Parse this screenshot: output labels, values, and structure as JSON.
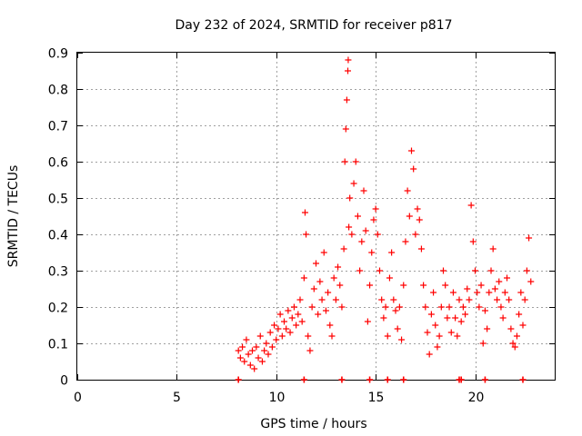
{
  "chart_data": {
    "type": "scatter",
    "title": "Day 232 of 2024, SRMTID for receiver p817",
    "xlabel": "GPS time / hours",
    "ylabel": "SRMTID / TECUs",
    "xlim": [
      0,
      24
    ],
    "ylim": [
      0,
      0.9
    ],
    "xticks": [
      0,
      5,
      10,
      15,
      20
    ],
    "xtick_labels": [
      "0",
      "5",
      "10",
      "15",
      "20"
    ],
    "yticks": [
      0,
      0.1,
      0.2,
      0.3,
      0.4,
      0.5,
      0.6,
      0.7,
      0.8,
      0.9
    ],
    "ytick_labels": [
      "0",
      "0.1",
      "0.2",
      "0.3",
      "0.4",
      "0.5",
      "0.6",
      "0.7",
      "0.8",
      "0.9"
    ],
    "grid": true,
    "marker": "+",
    "series": [
      {
        "name": "SRMTID",
        "color": "#ff0000",
        "points": [
          [
            8.1,
            0.08
          ],
          [
            8.2,
            0.06
          ],
          [
            8.3,
            0.09
          ],
          [
            8.4,
            0.05
          ],
          [
            8.5,
            0.11
          ],
          [
            8.6,
            0.07
          ],
          [
            8.7,
            0.04
          ],
          [
            8.8,
            0.08
          ],
          [
            8.9,
            0.03
          ],
          [
            9.0,
            0.09
          ],
          [
            9.1,
            0.06
          ],
          [
            9.2,
            0.12
          ],
          [
            9.3,
            0.05
          ],
          [
            9.4,
            0.08
          ],
          [
            9.5,
            0.1
          ],
          [
            9.6,
            0.07
          ],
          [
            9.7,
            0.13
          ],
          [
            9.8,
            0.09
          ],
          [
            9.9,
            0.15
          ],
          [
            10.0,
            0.11
          ],
          [
            10.1,
            0.14
          ],
          [
            10.2,
            0.18
          ],
          [
            10.3,
            0.12
          ],
          [
            10.4,
            0.16
          ],
          [
            10.5,
            0.14
          ],
          [
            10.6,
            0.19
          ],
          [
            10.7,
            0.13
          ],
          [
            10.8,
            0.17
          ],
          [
            10.9,
            0.2
          ],
          [
            11.0,
            0.15
          ],
          [
            11.1,
            0.18
          ],
          [
            11.2,
            0.22
          ],
          [
            11.3,
            0.16
          ],
          [
            11.4,
            0.28
          ],
          [
            11.45,
            0.46
          ],
          [
            11.5,
            0.4
          ],
          [
            11.6,
            0.12
          ],
          [
            11.7,
            0.08
          ],
          [
            11.8,
            0.2
          ],
          [
            11.9,
            0.25
          ],
          [
            12.0,
            0.32
          ],
          [
            12.1,
            0.18
          ],
          [
            12.2,
            0.27
          ],
          [
            12.3,
            0.22
          ],
          [
            12.4,
            0.35
          ],
          [
            12.5,
            0.19
          ],
          [
            12.6,
            0.24
          ],
          [
            12.7,
            0.15
          ],
          [
            12.8,
            0.12
          ],
          [
            12.9,
            0.28
          ],
          [
            13.0,
            0.22
          ],
          [
            13.1,
            0.31
          ],
          [
            13.2,
            0.26
          ],
          [
            13.3,
            0.2
          ],
          [
            13.4,
            0.36
          ],
          [
            13.45,
            0.6
          ],
          [
            13.5,
            0.69
          ],
          [
            13.55,
            0.77
          ],
          [
            13.6,
            0.85
          ],
          [
            13.62,
            0.88
          ],
          [
            13.65,
            0.42
          ],
          [
            13.7,
            0.5
          ],
          [
            13.8,
            0.4
          ],
          [
            13.9,
            0.54
          ],
          [
            14.0,
            0.6
          ],
          [
            14.1,
            0.45
          ],
          [
            14.2,
            0.3
          ],
          [
            14.3,
            0.38
          ],
          [
            14.4,
            0.52
          ],
          [
            14.5,
            0.41
          ],
          [
            14.6,
            0.16
          ],
          [
            14.7,
            0.26
          ],
          [
            14.8,
            0.35
          ],
          [
            14.9,
            0.44
          ],
          [
            15.0,
            0.47
          ],
          [
            15.1,
            0.4
          ],
          [
            15.2,
            0.3
          ],
          [
            15.3,
            0.22
          ],
          [
            15.4,
            0.17
          ],
          [
            15.5,
            0.2
          ],
          [
            15.6,
            0.12
          ],
          [
            15.7,
            0.28
          ],
          [
            15.8,
            0.35
          ],
          [
            15.9,
            0.22
          ],
          [
            16.0,
            0.19
          ],
          [
            16.1,
            0.14
          ],
          [
            16.2,
            0.2
          ],
          [
            16.3,
            0.11
          ],
          [
            16.4,
            0.26
          ],
          [
            16.5,
            0.38
          ],
          [
            16.6,
            0.52
          ],
          [
            16.7,
            0.45
          ],
          [
            16.8,
            0.63
          ],
          [
            16.9,
            0.58
          ],
          [
            17.0,
            0.4
          ],
          [
            17.1,
            0.47
          ],
          [
            17.2,
            0.44
          ],
          [
            17.3,
            0.36
          ],
          [
            17.4,
            0.26
          ],
          [
            17.5,
            0.2
          ],
          [
            17.6,
            0.13
          ],
          [
            17.7,
            0.07
          ],
          [
            17.8,
            0.18
          ],
          [
            17.9,
            0.24
          ],
          [
            18.0,
            0.15
          ],
          [
            18.1,
            0.09
          ],
          [
            18.2,
            0.12
          ],
          [
            18.3,
            0.2
          ],
          [
            18.4,
            0.3
          ],
          [
            18.5,
            0.26
          ],
          [
            18.6,
            0.17
          ],
          [
            18.7,
            0.2
          ],
          [
            18.8,
            0.13
          ],
          [
            18.9,
            0.24
          ],
          [
            19.0,
            0.17
          ],
          [
            19.1,
            0.12
          ],
          [
            19.2,
            0.22
          ],
          [
            19.3,
            0.16
          ],
          [
            19.4,
            0.2
          ],
          [
            19.5,
            0.18
          ],
          [
            19.6,
            0.25
          ],
          [
            19.7,
            0.22
          ],
          [
            19.8,
            0.48
          ],
          [
            19.9,
            0.38
          ],
          [
            20.0,
            0.3
          ],
          [
            20.1,
            0.24
          ],
          [
            20.2,
            0.2
          ],
          [
            20.3,
            0.26
          ],
          [
            20.4,
            0.1
          ],
          [
            20.5,
            0.19
          ],
          [
            20.6,
            0.14
          ],
          [
            20.7,
            0.24
          ],
          [
            20.8,
            0.3
          ],
          [
            20.9,
            0.36
          ],
          [
            21.0,
            0.25
          ],
          [
            21.1,
            0.22
          ],
          [
            21.2,
            0.27
          ],
          [
            21.3,
            0.2
          ],
          [
            21.4,
            0.17
          ],
          [
            21.5,
            0.24
          ],
          [
            21.6,
            0.28
          ],
          [
            21.7,
            0.22
          ],
          [
            21.8,
            0.14
          ],
          [
            21.9,
            0.1
          ],
          [
            22.0,
            0.09
          ],
          [
            22.1,
            0.12
          ],
          [
            22.2,
            0.18
          ],
          [
            22.3,
            0.24
          ],
          [
            22.4,
            0.15
          ],
          [
            22.5,
            0.22
          ],
          [
            22.6,
            0.3
          ],
          [
            22.7,
            0.39
          ],
          [
            22.8,
            0.27
          ]
        ]
      }
    ],
    "zero_markers_x": [
      8.1,
      11.4,
      13.3,
      14.7,
      15.6,
      16.4,
      19.2,
      19.3,
      20.5,
      22.4
    ]
  }
}
